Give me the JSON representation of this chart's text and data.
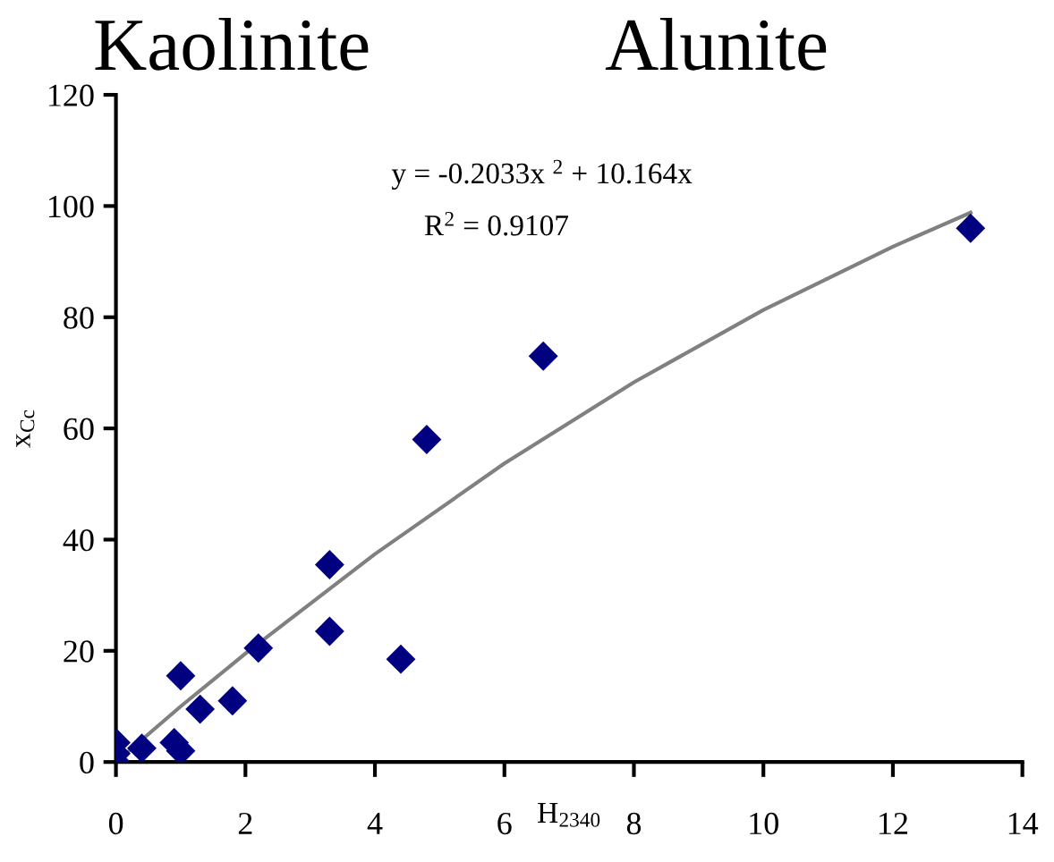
{
  "chart_data": {
    "type": "scatter",
    "xlabel": "H$_{2340}$",
    "ylabel": "x$_{Cc}$",
    "annotations": [
      "Kaolinite",
      "Alunite",
      "y = -0.2033x $^{2}$ + 10.164x",
      "R$^{2}$ = 0.9107"
    ],
    "xlim": [
      0,
      14
    ],
    "xticks": [
      0,
      2,
      4,
      6,
      8,
      10,
      12,
      14
    ],
    "ylim": [
      0,
      120
    ],
    "yticks": [
      0,
      20,
      40,
      60,
      80,
      100,
      120
    ],
    "grid": false,
    "legend": false,
    "series": [
      {
        "marker": "diamond",
        "color": "#000080",
        "x": [
          0,
          0,
          0,
          0.4,
          0.9,
          1,
          1,
          1.3,
          1.8,
          2.2,
          3.3,
          3.3,
          4.4,
          4.8,
          6.6,
          13.2
        ],
        "values": [
          0,
          1.5,
          3.5,
          2.5,
          3.5,
          2,
          15.5,
          9.5,
          11,
          20.5,
          35.5,
          23.5,
          18.5,
          58,
          73,
          96
        ]
      },
      {
        "type": "line",
        "color": "#808080",
        "line_style": "solid",
        "x": [
          0,
          1,
          2,
          4,
          6,
          8,
          10,
          12,
          13.2
        ],
        "values": [
          0,
          10,
          19.5,
          37.4,
          53.7,
          68.3,
          81.3,
          92.7,
          98.8
        ]
      }
    ]
  }
}
